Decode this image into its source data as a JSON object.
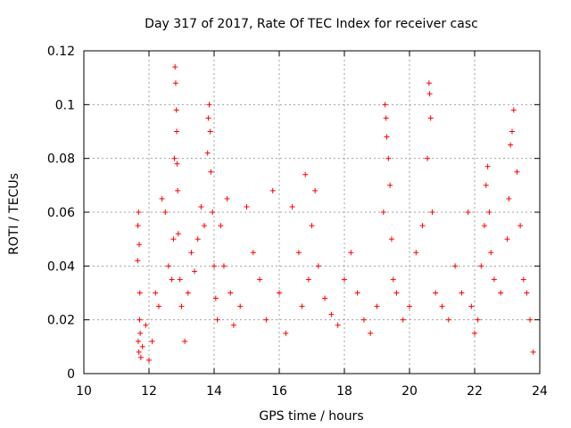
{
  "chart_data": {
    "type": "scatter",
    "title": "Day 317 of 2017, Rate Of TEC Index for receiver casc",
    "xlabel": "GPS time / hours",
    "ylabel": "ROTI / TECUs",
    "xlim": [
      10,
      24
    ],
    "ylim": [
      0,
      0.12
    ],
    "xticks": [
      10,
      12,
      14,
      16,
      18,
      20,
      22,
      24
    ],
    "yticks": [
      0,
      0.02,
      0.04,
      0.06,
      0.08,
      0.1,
      0.12
    ],
    "xtick_labels": [
      "10",
      "12",
      "14",
      "16",
      "18",
      "20",
      "22",
      "24"
    ],
    "ytick_labels": [
      "0",
      "0.02",
      "0.04",
      "0.06",
      "0.08",
      "0.1",
      "0.12"
    ],
    "grid": true,
    "marker": "+",
    "marker_color": "#ff0000",
    "data_range": {
      "x_start": 11.6,
      "x_end": 23.8
    },
    "series": [
      {
        "name": "ROTI",
        "x": [
          11.65,
          11.66,
          11.68,
          11.7,
          11.72,
          11.67,
          11.69,
          11.71,
          11.73,
          11.75,
          11.8,
          11.9,
          12.0,
          12.1,
          12.2,
          12.3,
          12.4,
          12.5,
          12.6,
          12.7,
          12.75,
          12.78,
          12.8,
          12.82,
          12.84,
          12.85,
          12.86,
          12.88,
          12.9,
          12.95,
          13.0,
          13.1,
          13.2,
          13.3,
          13.4,
          13.5,
          13.6,
          13.7,
          13.8,
          13.82,
          13.85,
          13.88,
          13.9,
          13.95,
          14.0,
          14.05,
          14.1,
          14.2,
          14.3,
          14.4,
          14.5,
          14.6,
          14.8,
          15.0,
          15.2,
          15.4,
          15.6,
          15.8,
          16.0,
          16.2,
          16.4,
          16.6,
          16.7,
          16.8,
          16.9,
          17.0,
          17.1,
          17.2,
          17.4,
          17.6,
          17.8,
          18.0,
          18.2,
          18.4,
          18.6,
          18.8,
          19.0,
          19.2,
          19.25,
          19.28,
          19.3,
          19.35,
          19.4,
          19.45,
          19.5,
          19.6,
          19.8,
          20.0,
          20.2,
          20.4,
          20.55,
          20.6,
          20.62,
          20.65,
          20.7,
          20.8,
          21.0,
          21.2,
          21.4,
          21.6,
          21.8,
          21.9,
          22.0,
          22.1,
          22.2,
          22.3,
          22.35,
          22.4,
          22.45,
          22.5,
          22.6,
          22.8,
          23.0,
          23.05,
          23.1,
          23.15,
          23.2,
          23.3,
          23.4,
          23.5,
          23.6,
          23.7,
          23.8
        ],
        "y": [
          0.042,
          0.055,
          0.06,
          0.048,
          0.03,
          0.012,
          0.008,
          0.02,
          0.015,
          0.006,
          0.01,
          0.018,
          0.005,
          0.012,
          0.03,
          0.025,
          0.065,
          0.06,
          0.04,
          0.035,
          0.05,
          0.08,
          0.114,
          0.108,
          0.098,
          0.09,
          0.078,
          0.068,
          0.052,
          0.035,
          0.025,
          0.012,
          0.03,
          0.045,
          0.038,
          0.05,
          0.062,
          0.055,
          0.082,
          0.095,
          0.1,
          0.09,
          0.075,
          0.06,
          0.04,
          0.028,
          0.02,
          0.055,
          0.04,
          0.065,
          0.03,
          0.018,
          0.025,
          0.062,
          0.045,
          0.035,
          0.02,
          0.068,
          0.03,
          0.015,
          0.062,
          0.045,
          0.025,
          0.074,
          0.035,
          0.055,
          0.068,
          0.04,
          0.028,
          0.022,
          0.018,
          0.035,
          0.045,
          0.03,
          0.02,
          0.015,
          0.025,
          0.06,
          0.1,
          0.095,
          0.088,
          0.08,
          0.07,
          0.05,
          0.035,
          0.03,
          0.02,
          0.025,
          0.045,
          0.055,
          0.08,
          0.108,
          0.104,
          0.095,
          0.06,
          0.03,
          0.025,
          0.02,
          0.04,
          0.03,
          0.06,
          0.025,
          0.015,
          0.02,
          0.04,
          0.055,
          0.07,
          0.077,
          0.06,
          0.045,
          0.035,
          0.03,
          0.05,
          0.065,
          0.085,
          0.09,
          0.098,
          0.075,
          0.055,
          0.035,
          0.03,
          0.02,
          0.008
        ]
      }
    ]
  }
}
